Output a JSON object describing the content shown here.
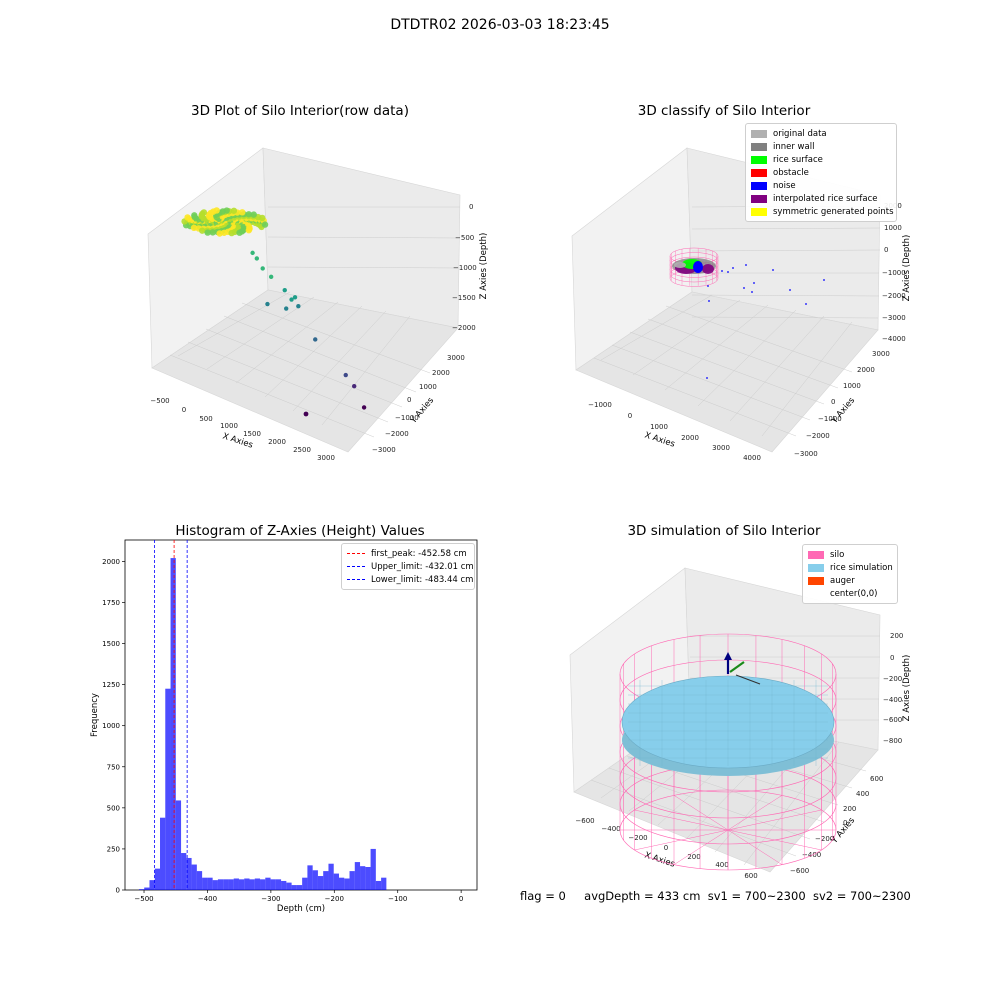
{
  "figure": {
    "suptitle": "DTDTR02 2026-03-03 18:23:45",
    "footer": {
      "flag": "flag = 0",
      "avg_depth": "avgDepth = 433 cm",
      "sv1": "sv1 = 700~2300",
      "sv2": "sv2 = 700~2300"
    }
  },
  "chart_data": [
    {
      "type": "scatter",
      "title": "3D Plot of Silo Interior(row data)",
      "xlabel": "X Axies",
      "ylabel": "Y Axies",
      "zlabel": "Z Axies (Depth)",
      "x_ticks": [
        "−500",
        "0",
        "500",
        "1000",
        "1500",
        "2000",
        "2500",
        "3000"
      ],
      "y_ticks": [
        "−3000",
        "−2000",
        "−1000",
        "0",
        "1000",
        "2000",
        "3000"
      ],
      "z_ticks": [
        "0",
        "−500",
        "−1000",
        "−1500",
        "−2000"
      ],
      "xlim": [
        -600,
        3200
      ],
      "ylim": [
        -3200,
        3200
      ],
      "zlim": [
        -2300,
        100
      ],
      "colormap": "viridis (by depth)",
      "cluster": {
        "x_range": [
          -300,
          300
        ],
        "y_range": [
          -300,
          300
        ],
        "z_range": [
          -500,
          -400
        ],
        "approx_points": 3800
      },
      "outliers": [
        {
          "x": 150,
          "y": 150,
          "z": -650
        },
        {
          "x": 250,
          "y": 100,
          "z": -700
        },
        {
          "x": 400,
          "y": 0,
          "z": -800
        },
        {
          "x": 600,
          "y": -100,
          "z": -850
        },
        {
          "x": 900,
          "y": -200,
          "z": -950
        },
        {
          "x": 1100,
          "y": -200,
          "z": -1000
        },
        {
          "x": 1050,
          "y": -250,
          "z": -1050
        },
        {
          "x": 1200,
          "y": -300,
          "z": -1100
        },
        {
          "x": 1000,
          "y": -400,
          "z": -1200
        },
        {
          "x": 600,
          "y": -300,
          "z": -1300
        },
        {
          "x": 1600,
          "y": -500,
          "z": -1500
        },
        {
          "x": 2300,
          "y": -800,
          "z": -1800
        },
        {
          "x": 2500,
          "y": -900,
          "z": -1900
        },
        {
          "x": 2800,
          "y": -1200,
          "z": -2100
        }
      ]
    },
    {
      "type": "scatter",
      "title": "3D classify of Silo Interior",
      "xlabel": "X Axies",
      "ylabel": "Y Axies",
      "zlabel": "Z Axies (Depth)",
      "x_ticks": [
        "−1000",
        "0",
        "1000",
        "2000",
        "3000",
        "4000"
      ],
      "y_ticks": [
        "−3000",
        "−2000",
        "−1000",
        "0",
        "1000",
        "2000",
        "3000"
      ],
      "z_ticks": [
        "2000",
        "1000",
        "0",
        "−1000",
        "−2000",
        "−3000",
        "−4000"
      ],
      "xlim": [
        -1500,
        4200
      ],
      "ylim": [
        -3200,
        3200
      ],
      "zlim": [
        -4200,
        2200
      ],
      "legend": [
        {
          "label": "original data",
          "color": "#b0b0b0"
        },
        {
          "label": "inner wall",
          "color": "#808080"
        },
        {
          "label": "rice surface",
          "color": "#00ff00"
        },
        {
          "label": "obstacle",
          "color": "#ff0000"
        },
        {
          "label": "noise",
          "color": "#0000ff"
        },
        {
          "label": "interpolated rice surface",
          "color": "#800080"
        },
        {
          "label": "symmetric generated points",
          "color": "#ffff00"
        }
      ]
    },
    {
      "type": "bar",
      "title": "Histogram of Z-Axies (Height) Values",
      "xlabel": "Depth (cm)",
      "ylabel": "Frequency",
      "xlim": [
        -530,
        25
      ],
      "ylim": [
        0,
        2130
      ],
      "x_ticks": [
        -500,
        -400,
        -300,
        -200,
        -100,
        0
      ],
      "x_tick_labels": [
        "−500",
        "−400",
        "−300",
        "−200",
        "−100",
        "0"
      ],
      "y_ticks": [
        0,
        250,
        500,
        750,
        1000,
        1250,
        1500,
        1750,
        2000
      ],
      "y_tick_labels": [
        "0",
        "250",
        "500",
        "750",
        "1000",
        "1250",
        "1500",
        "1750",
        "2000"
      ],
      "bin_start": -508,
      "bin_width": 8.3,
      "values": [
        5,
        15,
        60,
        130,
        440,
        1225,
        2020,
        545,
        225,
        195,
        155,
        115,
        75,
        75,
        60,
        65,
        65,
        65,
        70,
        65,
        70,
        65,
        70,
        65,
        75,
        65,
        65,
        55,
        45,
        30,
        30,
        75,
        150,
        120,
        85,
        115,
        160,
        100,
        75,
        70,
        115,
        170,
        145,
        140,
        250,
        55,
        75
      ],
      "bar_color": "#0000ff",
      "lines": [
        {
          "label": "first_peak: -452.58 cm",
          "value": -452.58,
          "color": "#ff0000"
        },
        {
          "label": "Upper_limit: -432.01 cm",
          "value": -432.01,
          "color": "#0000ff"
        },
        {
          "label": "Lower_limit: -483.44 cm",
          "value": -483.44,
          "color": "#0000ff"
        }
      ]
    },
    {
      "type": "scatter",
      "title": "3D simulation of Silo Interior",
      "xlabel": "X Axies",
      "ylabel": "Y Axies",
      "zlabel": "Z Axies (Depth)",
      "x_ticks": [
        "−600",
        "−400",
        "−200",
        "0",
        "200",
        "400",
        "600"
      ],
      "y_ticks": [
        "−600",
        "−400",
        "−200",
        "0",
        "200",
        "400",
        "600"
      ],
      "z_ticks": [
        "200",
        "0",
        "−200",
        "−400",
        "−600",
        "−800"
      ],
      "xlim": [
        -700,
        700
      ],
      "ylim": [
        -700,
        700
      ],
      "zlim": [
        -1000,
        350
      ],
      "silo_radius": 600,
      "rice_level": -433,
      "legend": [
        {
          "label": "silo",
          "color": "#ff69b4"
        },
        {
          "label": "rice simulation",
          "color": "#87ceeb"
        },
        {
          "label": "auger",
          "color": "#ff4500"
        },
        {
          "label": "center(0,0)",
          "color": "#ffffff"
        }
      ]
    }
  ]
}
